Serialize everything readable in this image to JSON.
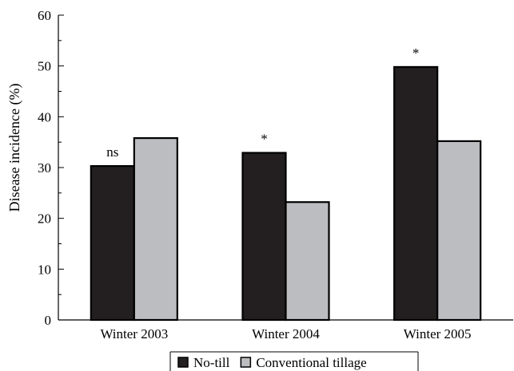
{
  "chart_data": {
    "type": "bar",
    "categories": [
      "Winter 2003",
      "Winter 2004",
      "Winter 2005"
    ],
    "series": [
      {
        "name": "No-till",
        "values": [
          30.3,
          32.9,
          49.8
        ],
        "color": "#231f20"
      },
      {
        "name": "Conventional tillage",
        "values": [
          35.8,
          23.2,
          35.2
        ],
        "color": "#bcbdc0"
      }
    ],
    "annotations": [
      "ns",
      "*",
      "*"
    ],
    "title": "",
    "xlabel": "",
    "ylabel": "Disease incidence (%)",
    "ylim": [
      0,
      60
    ],
    "yticks": [
      0,
      10,
      20,
      30,
      40,
      50,
      60
    ],
    "grid": false,
    "legend_position": "bottom-center"
  }
}
